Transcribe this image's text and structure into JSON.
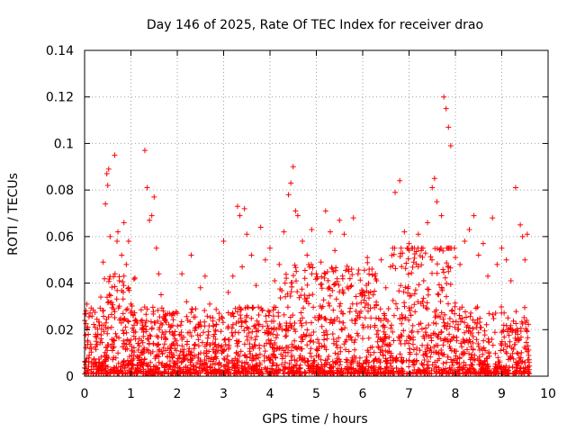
{
  "chart_data": {
    "type": "scatter",
    "title": "Day 146 of 2025, Rate Of TEC Index for receiver drao",
    "xlabel": "GPS time / hours",
    "ylabel": "ROTI / TECUs",
    "xlim": [
      0,
      10
    ],
    "ylim": [
      0,
      0.14
    ],
    "xticks": [
      "0",
      "1",
      "2",
      "3",
      "4",
      "5",
      "6",
      "7",
      "8",
      "9",
      "10"
    ],
    "yticks": [
      "0",
      "0.02",
      "0.04",
      "0.06",
      "0.08",
      "0.1",
      "0.12",
      "0.14"
    ],
    "grid": true,
    "marker": "+",
    "color": "#ff0000",
    "series": [
      {
        "name": "ROTI",
        "x": [
          0.02,
          0.05,
          0.08,
          0.1,
          0.15,
          0.2,
          0.25,
          0.3,
          0.35,
          0.4,
          0.45,
          0.48,
          0.5,
          0.52,
          0.55,
          0.58,
          0.6,
          0.65,
          0.7,
          0.72,
          0.75,
          0.8,
          0.85,
          0.9,
          0.95,
          1.0,
          1.05,
          1.1,
          1.15,
          1.2,
          1.25,
          1.3,
          1.35,
          1.4,
          1.45,
          1.5,
          1.55,
          1.6,
          1.65,
          1.7,
          1.75,
          1.8,
          1.85,
          1.9,
          1.95,
          2.0,
          2.1,
          2.2,
          2.3,
          2.4,
          2.5,
          2.6,
          2.7,
          2.8,
          2.9,
          3.0,
          3.1,
          3.2,
          3.3,
          3.35,
          3.4,
          3.45,
          3.5,
          3.6,
          3.7,
          3.8,
          3.9,
          4.0,
          4.1,
          4.2,
          4.3,
          4.4,
          4.45,
          4.5,
          4.55,
          4.6,
          4.7,
          4.8,
          4.9,
          5.0,
          5.1,
          5.2,
          5.3,
          5.4,
          5.5,
          5.6,
          5.7,
          5.8,
          5.9,
          6.0,
          6.1,
          6.2,
          6.3,
          6.4,
          6.5,
          6.6,
          6.7,
          6.8,
          6.9,
          7.0,
          7.1,
          7.2,
          7.3,
          7.4,
          7.5,
          7.55,
          7.6,
          7.7,
          7.75,
          7.8,
          7.85,
          7.9,
          8.0,
          8.1,
          8.2,
          8.3,
          8.4,
          8.5,
          8.6,
          8.7,
          8.8,
          8.9,
          9.0,
          9.1,
          9.2,
          9.3,
          9.4,
          9.45,
          9.5,
          9.55
        ],
        "y": [
          0.006,
          0.031,
          0.018,
          0.009,
          0.012,
          0.007,
          0.015,
          0.005,
          0.034,
          0.049,
          0.074,
          0.087,
          0.082,
          0.089,
          0.06,
          0.021,
          0.011,
          0.095,
          0.058,
          0.062,
          0.041,
          0.052,
          0.066,
          0.048,
          0.058,
          0.031,
          0.026,
          0.019,
          0.014,
          0.009,
          0.022,
          0.097,
          0.081,
          0.067,
          0.069,
          0.077,
          0.055,
          0.044,
          0.035,
          0.028,
          0.019,
          0.012,
          0.021,
          0.008,
          0.016,
          0.027,
          0.044,
          0.032,
          0.052,
          0.021,
          0.038,
          0.043,
          0.031,
          0.018,
          0.027,
          0.058,
          0.036,
          0.043,
          0.073,
          0.069,
          0.047,
          0.072,
          0.061,
          0.052,
          0.039,
          0.064,
          0.05,
          0.055,
          0.041,
          0.048,
          0.062,
          0.078,
          0.083,
          0.09,
          0.071,
          0.069,
          0.058,
          0.052,
          0.063,
          0.044,
          0.049,
          0.071,
          0.062,
          0.054,
          0.067,
          0.061,
          0.045,
          0.068,
          0.044,
          0.035,
          0.051,
          0.046,
          0.041,
          0.05,
          0.038,
          0.047,
          0.079,
          0.084,
          0.062,
          0.057,
          0.049,
          0.061,
          0.055,
          0.066,
          0.081,
          0.085,
          0.075,
          0.069,
          0.12,
          0.115,
          0.107,
          0.099,
          0.051,
          0.048,
          0.058,
          0.063,
          0.069,
          0.052,
          0.057,
          0.043,
          0.068,
          0.048,
          0.055,
          0.05,
          0.041,
          0.081,
          0.065,
          0.06,
          0.05,
          0.061
        ]
      }
    ]
  }
}
